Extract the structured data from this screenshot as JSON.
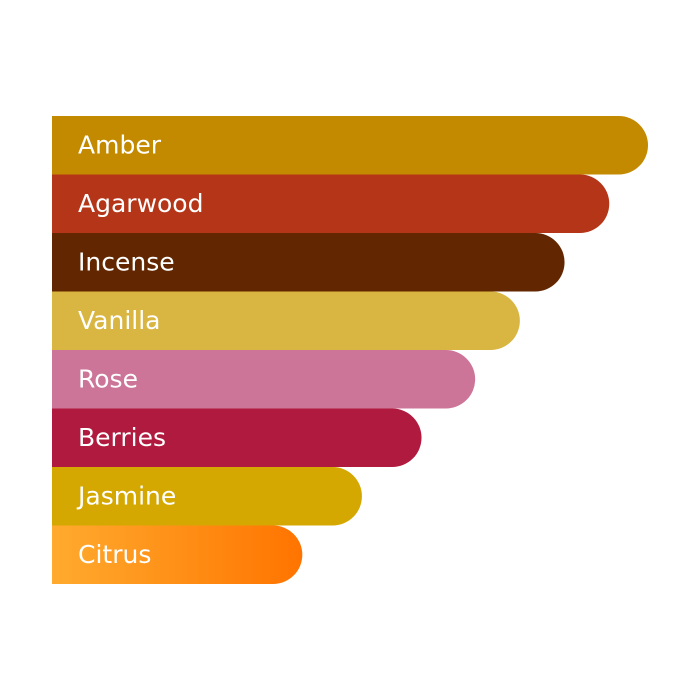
{
  "chart_data": {
    "type": "bar",
    "categories": [
      "Amber",
      "Agarwood",
      "Incense",
      "Vanilla",
      "Rose",
      "Berries",
      "Jasmine",
      "Citrus"
    ],
    "values": [
      100,
      93.5,
      86,
      78.5,
      71,
      62,
      52,
      42
    ],
    "colors": [
      "#c38a00",
      "#b43518",
      "#622700",
      "#d9b641",
      "#cc7598",
      "#b01a3e",
      "#d4a800",
      [
        "#ffab2e",
        "#ff7400"
      ]
    ],
    "xlim": [
      0,
      100
    ]
  }
}
